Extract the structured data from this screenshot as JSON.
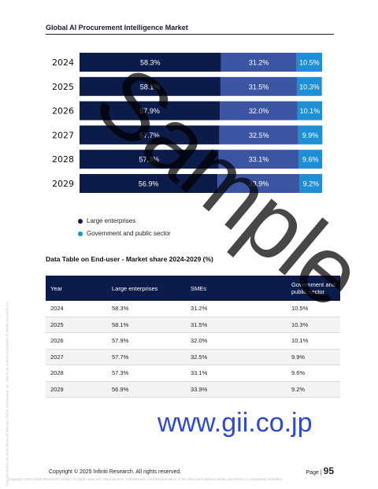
{
  "header": {
    "title": "Global AI Procurement Intelligence Market"
  },
  "chart_data": {
    "type": "bar",
    "orientation": "horizontal-stacked-100",
    "categories": [
      "2024",
      "2025",
      "2026",
      "2027",
      "2028",
      "2029"
    ],
    "series": [
      {
        "name": "Large enterprises",
        "values": [
          58.3,
          58.1,
          57.9,
          57.7,
          57.3,
          56.9
        ],
        "color": "#0b1c4a",
        "labels": [
          "58.3%",
          "58.1%",
          "57.9%",
          "57.7%",
          "57.3%",
          "56.9%"
        ]
      },
      {
        "name": "SMEs",
        "values": [
          31.2,
          31.5,
          32.0,
          32.5,
          33.1,
          33.9
        ],
        "color": "#3b55a3",
        "labels": [
          "31.2%",
          "31.5%",
          "32.0%",
          "32.5%",
          "33.1%",
          "33.9%"
        ]
      },
      {
        "name": "Government and public sector",
        "values": [
          10.5,
          10.3,
          10.1,
          9.9,
          9.6,
          9.2
        ],
        "color": "#1e8fd6",
        "labels": [
          "10.5%",
          "10.3%",
          "10.1%",
          "9.9%",
          "9.6%",
          "9.2%"
        ]
      }
    ],
    "xlim": [
      0,
      100
    ],
    "legend_position": "bottom-left",
    "legend": {
      "item1": "Large enterprises",
      "item2": "Government and public sector"
    }
  },
  "table": {
    "title": "Data Table on End-user - Market share 2024-2029 (%)",
    "headers": [
      "Year",
      "Large enterprises",
      "SMEs",
      "Government and public sector"
    ],
    "rows": [
      [
        "2024",
        "58.3%",
        "31.2%",
        "10.5%"
      ],
      [
        "2025",
        "58.1%",
        "31.5%",
        "10.3%"
      ],
      [
        "2026",
        "57.9%",
        "32.0%",
        "10.1%"
      ],
      [
        "2027",
        "57.7%",
        "32.5%",
        "9.9%"
      ],
      [
        "2028",
        "57.3%",
        "33.1%",
        "9.6%"
      ],
      [
        "2029",
        "56.9%",
        "33.9%",
        "9.2%"
      ]
    ]
  },
  "watermark": {
    "text": "Sample",
    "url": "www.gii.co.jp"
  },
  "footer": {
    "copyright": "Copyright © 2025 Infiniti Research. All rights reserved.",
    "page_label": "Page |",
    "page_number": "95",
    "legal": "Copyright 2025 Infiniti Research Limited. All rights reserved. Reproduction, redistribution, and dissemination of the document without written permission is completely forbidden.",
    "side_note": "This document has been licensed through Global Information, Inc. and is an authorized partner of Infiniti Research Inc."
  },
  "colors": {
    "navy": "#0b1c4a",
    "mid_blue": "#3b55a3",
    "light_blue": "#1e8fd6"
  }
}
